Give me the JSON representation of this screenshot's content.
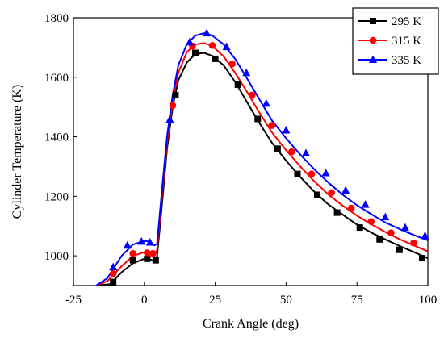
{
  "chart_data": {
    "type": "line",
    "title": "",
    "xlabel": "Crank Angle (deg)",
    "ylabel": "Cylinder Temperature (K)",
    "xlim": [
      -25,
      100
    ],
    "ylim": [
      900,
      1800
    ],
    "xticks": [
      -25,
      0,
      25,
      50,
      75,
      100
    ],
    "yticks": [
      1000,
      1200,
      1400,
      1600,
      1800
    ],
    "grid": false,
    "legend_position": "top-right",
    "series": [
      {
        "name": "295 K",
        "color": "#000000",
        "marker": "square",
        "curve": [
          [
            -17,
            900
          ],
          [
            -12,
            905
          ],
          [
            -8,
            945
          ],
          [
            -4,
            975
          ],
          [
            0,
            990
          ],
          [
            2,
            988
          ],
          [
            3.5,
            982
          ],
          [
            4.5,
            1000
          ],
          [
            6,
            1150
          ],
          [
            8,
            1360
          ],
          [
            10,
            1500
          ],
          [
            12,
            1590
          ],
          [
            15,
            1650
          ],
          [
            18,
            1678
          ],
          [
            21,
            1682
          ],
          [
            24,
            1672
          ],
          [
            28,
            1640
          ],
          [
            32,
            1585
          ],
          [
            36,
            1520
          ],
          [
            40,
            1455
          ],
          [
            45,
            1380
          ],
          [
            50,
            1320
          ],
          [
            55,
            1265
          ],
          [
            60,
            1215
          ],
          [
            65,
            1172
          ],
          [
            70,
            1138
          ],
          [
            75,
            1105
          ],
          [
            80,
            1078
          ],
          [
            85,
            1055
          ],
          [
            90,
            1033
          ],
          [
            95,
            1013
          ],
          [
            100,
            992
          ]
        ],
        "points": [
          [
            -11,
            912
          ],
          [
            -4,
            985
          ],
          [
            1,
            990
          ],
          [
            4,
            985
          ],
          [
            11,
            1540
          ],
          [
            18,
            1682
          ],
          [
            25,
            1662
          ],
          [
            33,
            1575
          ],
          [
            40,
            1460
          ],
          [
            47,
            1360
          ],
          [
            54,
            1275
          ],
          [
            61,
            1205
          ],
          [
            68,
            1145
          ],
          [
            76,
            1095
          ],
          [
            83,
            1055
          ],
          [
            90,
            1020
          ],
          [
            98,
            992
          ]
        ]
      },
      {
        "name": "315 K",
        "color": "#ff0000",
        "marker": "circle",
        "curve": [
          [
            -17,
            900
          ],
          [
            -13,
            915
          ],
          [
            -8,
            965
          ],
          [
            -4,
            1000
          ],
          [
            0,
            1012
          ],
          [
            2,
            1010
          ],
          [
            3.5,
            1000
          ],
          [
            4.5,
            1020
          ],
          [
            6,
            1180
          ],
          [
            8,
            1380
          ],
          [
            10,
            1520
          ],
          [
            12,
            1615
          ],
          [
            15,
            1685
          ],
          [
            18,
            1710
          ],
          [
            21,
            1715
          ],
          [
            24,
            1705
          ],
          [
            28,
            1670
          ],
          [
            32,
            1615
          ],
          [
            36,
            1555
          ],
          [
            40,
            1490
          ],
          [
            45,
            1415
          ],
          [
            50,
            1355
          ],
          [
            55,
            1300
          ],
          [
            60,
            1250
          ],
          [
            65,
            1205
          ],
          [
            70,
            1168
          ],
          [
            75,
            1135
          ],
          [
            80,
            1106
          ],
          [
            85,
            1080
          ],
          [
            90,
            1056
          ],
          [
            95,
            1035
          ],
          [
            100,
            1015
          ]
        ],
        "points": [
          [
            -11,
            940
          ],
          [
            -4,
            1008
          ],
          [
            1,
            1010
          ],
          [
            3,
            1008
          ],
          [
            10,
            1505
          ],
          [
            17,
            1705
          ],
          [
            24,
            1707
          ],
          [
            31,
            1645
          ],
          [
            38,
            1540
          ],
          [
            45,
            1438
          ],
          [
            52,
            1350
          ],
          [
            59,
            1275
          ],
          [
            66,
            1212
          ],
          [
            73,
            1160
          ],
          [
            80,
            1115
          ],
          [
            87,
            1077
          ],
          [
            95,
            1043
          ]
        ]
      },
      {
        "name": "335 K",
        "color": "#0000ff",
        "marker": "triangle",
        "curve": [
          [
            -17,
            900
          ],
          [
            -13,
            925
          ],
          [
            -8,
            1000
          ],
          [
            -4,
            1038
          ],
          [
            0,
            1050
          ],
          [
            2,
            1048
          ],
          [
            3.5,
            1035
          ],
          [
            4.5,
            1040
          ],
          [
            6,
            1200
          ],
          [
            8,
            1400
          ],
          [
            10,
            1540
          ],
          [
            12,
            1640
          ],
          [
            15,
            1712
          ],
          [
            18,
            1740
          ],
          [
            21,
            1748
          ],
          [
            24,
            1740
          ],
          [
            28,
            1710
          ],
          [
            32,
            1662
          ],
          [
            36,
            1600
          ],
          [
            40,
            1535
          ],
          [
            45,
            1455
          ],
          [
            50,
            1395
          ],
          [
            55,
            1340
          ],
          [
            60,
            1290
          ],
          [
            65,
            1245
          ],
          [
            70,
            1205
          ],
          [
            75,
            1170
          ],
          [
            80,
            1140
          ],
          [
            85,
            1112
          ],
          [
            90,
            1090
          ],
          [
            95,
            1070
          ],
          [
            100,
            1052
          ]
        ],
        "points": [
          [
            -11,
            962
          ],
          [
            -6,
            1035
          ],
          [
            -1,
            1048
          ],
          [
            2,
            1045
          ],
          [
            9,
            1458
          ],
          [
            16,
            1718
          ],
          [
            22,
            1748
          ],
          [
            29,
            1702
          ],
          [
            36,
            1615
          ],
          [
            43,
            1512
          ],
          [
            50,
            1422
          ],
          [
            57,
            1345
          ],
          [
            64,
            1278
          ],
          [
            71,
            1220
          ],
          [
            78,
            1172
          ],
          [
            85,
            1130
          ],
          [
            92,
            1095
          ],
          [
            99,
            1067
          ]
        ]
      }
    ]
  }
}
